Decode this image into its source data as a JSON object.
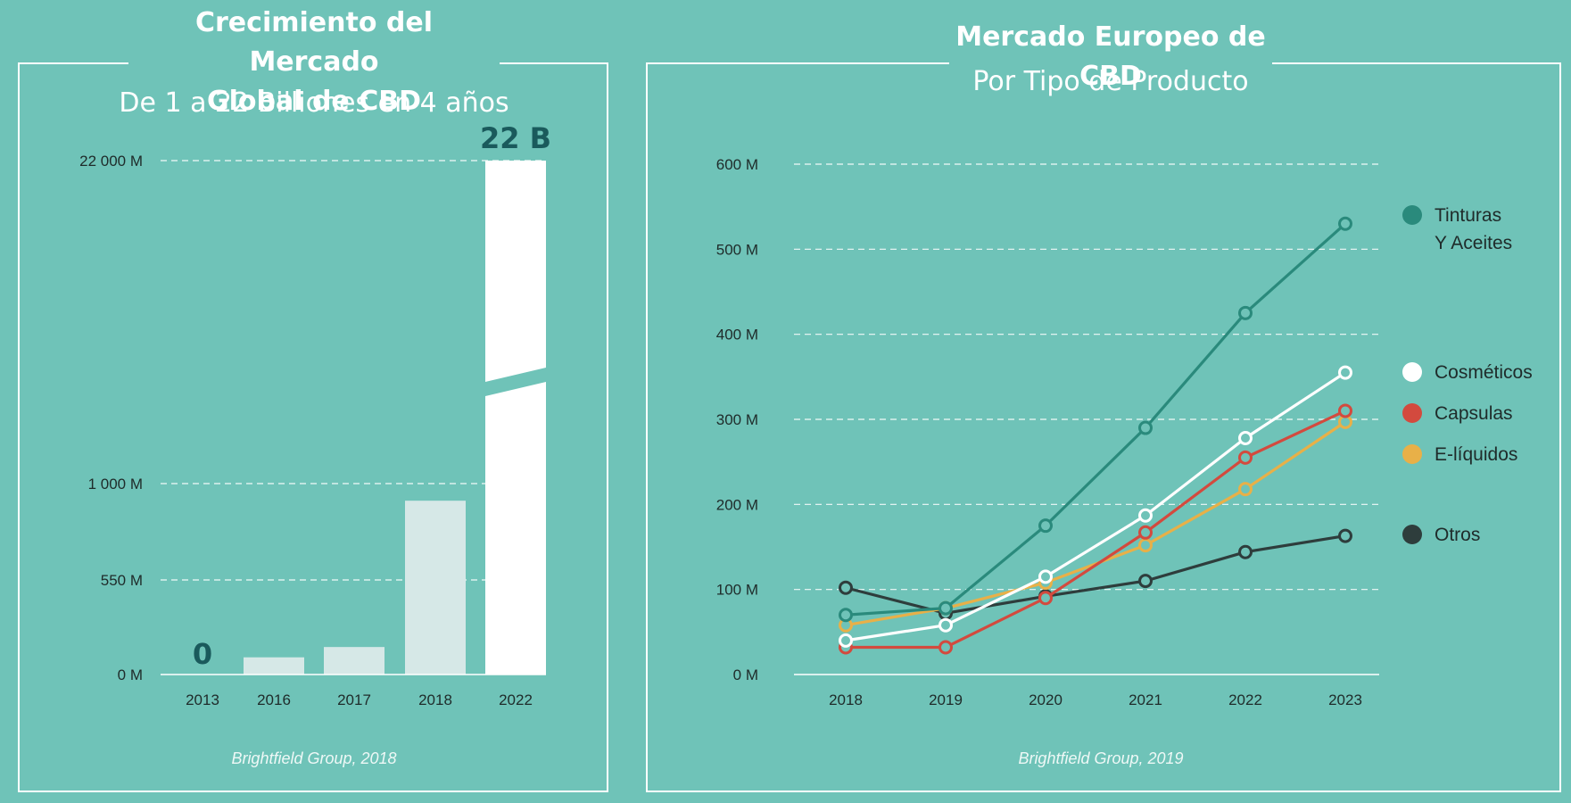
{
  "left_panel": {
    "title_line1": "Crecimiento del Mercado",
    "title_line2": "Global de CBD",
    "subtitle": "De 1 a 22 Billiones en 4 años",
    "source": "Brightfield Group, 2018",
    "big_label": "22 B",
    "zero_label": "0"
  },
  "right_panel": {
    "title": "Mercado Europeo de CBD",
    "subtitle": "Por Tipo de Producto",
    "source": "Brightfield Group, 2019"
  },
  "colors": {
    "background": "#6fc3b8",
    "bar": "#d6e8e7",
    "bar_highlight": "#ffffff",
    "dark_label": "#1a5a5c",
    "grid": "#ffffff"
  },
  "chart_data": [
    {
      "type": "bar",
      "title": "Crecimiento del Mercado Global de CBD",
      "subtitle": "De 1 a 22 Billiones en 4 años",
      "categories": [
        "2013",
        "2016",
        "2017",
        "2018",
        "2022"
      ],
      "values": [
        0,
        100,
        160,
        920,
        22000
      ],
      "y_ticks": [
        {
          "value": 0,
          "label": "0 M"
        },
        {
          "value": 550,
          "label": "550 M"
        },
        {
          "value": 1000,
          "label": "1 000 M"
        },
        {
          "value": 22000,
          "label": "22 000 M"
        }
      ],
      "axis_break": true,
      "grid": true,
      "data_labels": {
        "2013": "0",
        "2022": "22 B"
      }
    },
    {
      "type": "line",
      "title": "Mercado Europeo de CBD",
      "subtitle": "Por Tipo de Producto",
      "x": [
        "2018",
        "2019",
        "2020",
        "2021",
        "2022",
        "2023"
      ],
      "ylim": [
        0,
        600
      ],
      "y_ticks": [
        {
          "value": 0,
          "label": "0 M"
        },
        {
          "value": 100,
          "label": "100 M"
        },
        {
          "value": 200,
          "label": "200 M"
        },
        {
          "value": 300,
          "label": "300 M"
        },
        {
          "value": 400,
          "label": "400 M"
        },
        {
          "value": 500,
          "label": "500 M"
        },
        {
          "value": 600,
          "label": "600 M"
        }
      ],
      "grid": true,
      "legend_position": "right",
      "series": [
        {
          "name": "Tinturas\nY Aceites",
          "color": "#2a8a7c",
          "values": [
            70,
            78,
            175,
            290,
            425,
            530
          ]
        },
        {
          "name": "Cosméticos",
          "color": "#ffffff",
          "values": [
            40,
            58,
            115,
            187,
            278,
            355
          ]
        },
        {
          "name": "Capsulas",
          "color": "#d34a3e",
          "values": [
            32,
            32,
            90,
            167,
            255,
            310
          ]
        },
        {
          "name": "E-líquidos",
          "color": "#e8b048",
          "values": [
            58,
            78,
            108,
            152,
            218,
            297
          ]
        },
        {
          "name": "Otros",
          "color": "#2e3d3c",
          "values": [
            102,
            72,
            92,
            110,
            144,
            163
          ]
        }
      ]
    }
  ]
}
